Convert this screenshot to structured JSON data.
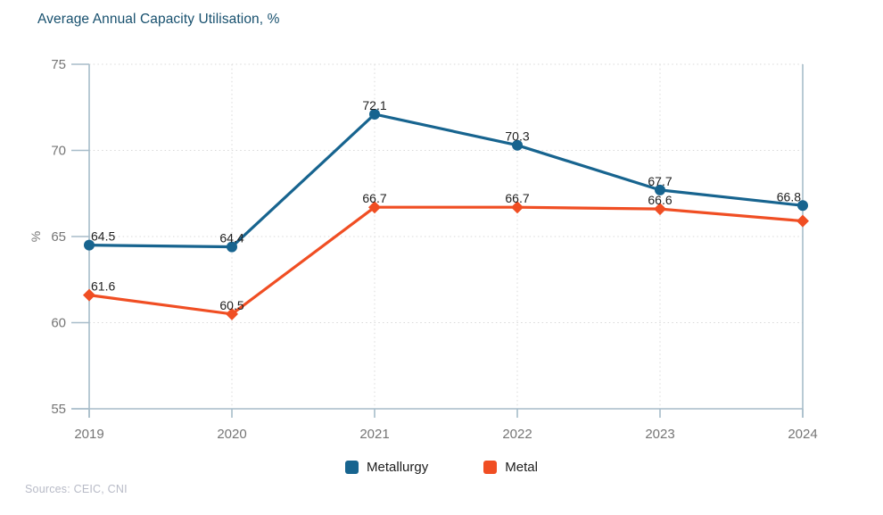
{
  "chart_data": {
    "type": "line",
    "title": "Average Annual Capacity Utilisation, %",
    "xlabel": "",
    "ylabel": "%",
    "x": [
      "2019",
      "2020",
      "2021",
      "2022",
      "2023",
      "2024"
    ],
    "ylim": [
      55,
      75
    ],
    "yticks": [
      55,
      60,
      65,
      70,
      75
    ],
    "grid": "dotted",
    "legend_position": "bottom",
    "series": [
      {
        "name": "Metallurgy",
        "color": "#17648f",
        "marker": "circle",
        "values": [
          64.5,
          64.4,
          72.1,
          70.3,
          67.7,
          66.8
        ],
        "point_labels": [
          "64.5",
          "64.4",
          "72.1",
          "70.3",
          "67.7",
          "66.8"
        ]
      },
      {
        "name": "Metal",
        "color": "#f04e23",
        "marker": "diamond",
        "values": [
          61.6,
          60.5,
          66.7,
          66.7,
          66.6,
          65.9
        ],
        "point_labels": [
          "61.6",
          "60.5",
          "66.7",
          "66.7",
          "66.6",
          null
        ]
      }
    ]
  },
  "footer": {
    "sources": "Sources: CEIC, CNI"
  },
  "colors": {
    "background": "#ffffff",
    "title": "#17506e",
    "axis": "#a7bcc9",
    "grid": "#d9d9d9",
    "tick_text": "#757575",
    "data_label": "#1f1f1f",
    "legend_text": "#1c1c1c",
    "sources_text": "#b8bbc7",
    "metallurgy": "#17648f",
    "metal": "#f04e23"
  }
}
